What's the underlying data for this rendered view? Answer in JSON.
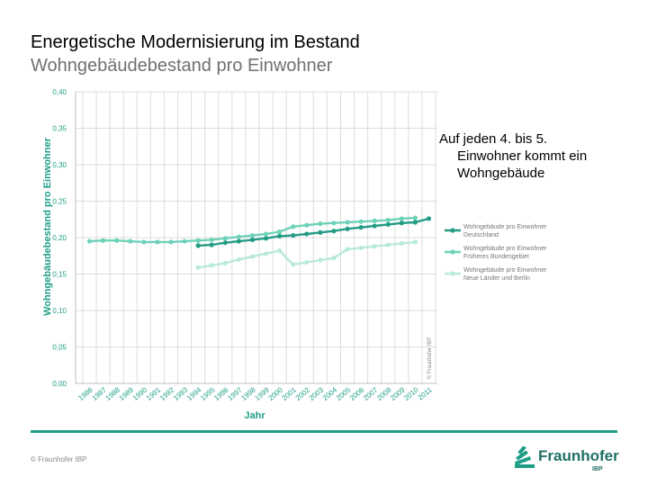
{
  "header": {
    "title": "Energetische Modernisierung im Bestand",
    "subtitle": "Wohngebäudebestand pro Einwohner"
  },
  "note": {
    "line1": "Auf jeden 4. bis 5.",
    "line2": "Einwohner kommt ein",
    "line3": "Wohngebäude"
  },
  "footer": {
    "copyright": "© Fraunhofer IBP",
    "logo_name": "Fraunhofer",
    "logo_sub": "IBP"
  },
  "colors": {
    "deutschland": "#249c85",
    "frueheres_bundesgebiet": "#6fd2b8",
    "neue_laender": "#b9e9de",
    "axis_text": "#1f9e87",
    "grid": "#dcdcdc",
    "footer_line": "#1f9e87"
  },
  "chart_data": {
    "type": "line",
    "ylabel": "Wohngebäudebestand pro Einwohner",
    "xlabel": "Jahr",
    "ylim": [
      0,
      0.4
    ],
    "yticks": [
      "0,00",
      "0,05",
      "0,10",
      "0,15",
      "0,20",
      "0,25",
      "0,30",
      "0,35",
      "0,40"
    ],
    "categories": [
      "1986",
      "1987",
      "1988",
      "1989",
      "1990",
      "1991",
      "1992",
      "1993",
      "1994",
      "1995",
      "1996",
      "1997",
      "1998",
      "1999",
      "2000",
      "2001",
      "2002",
      "2003",
      "2004",
      "2005",
      "2006",
      "2007",
      "2008",
      "2009",
      "2010",
      "2011"
    ],
    "grid": true,
    "legend_position": "right",
    "watermark": "© Fraunhofer IBP",
    "series": [
      {
        "name": "Wohngebäude pro Einwohner Deutschland",
        "color": "#249c85",
        "values": [
          null,
          null,
          null,
          null,
          null,
          null,
          null,
          null,
          0.189,
          0.19,
          0.193,
          0.195,
          0.197,
          0.199,
          0.202,
          0.203,
          0.205,
          0.207,
          0.209,
          0.212,
          0.214,
          0.216,
          0.218,
          0.22,
          0.221,
          0.226
        ]
      },
      {
        "name": "Wohngebäude pro Einwohner Früheres Bundesgebiet",
        "color": "#6fd2b8",
        "values": [
          0.195,
          0.196,
          0.196,
          0.195,
          0.194,
          0.194,
          0.194,
          0.195,
          0.196,
          0.197,
          0.199,
          0.201,
          0.203,
          0.205,
          0.208,
          0.215,
          0.217,
          0.219,
          0.22,
          0.221,
          0.222,
          0.223,
          0.224,
          0.226,
          0.227,
          null
        ]
      },
      {
        "name": "Wohngebäude pro Einwohner Neue Länder und Berlin",
        "color": "#b9e9de",
        "values": [
          null,
          null,
          null,
          null,
          null,
          null,
          null,
          null,
          0.159,
          0.162,
          0.165,
          0.17,
          0.174,
          0.178,
          0.182,
          0.163,
          0.166,
          0.169,
          0.172,
          0.184,
          0.186,
          0.188,
          0.19,
          0.192,
          0.194,
          null
        ]
      }
    ]
  }
}
